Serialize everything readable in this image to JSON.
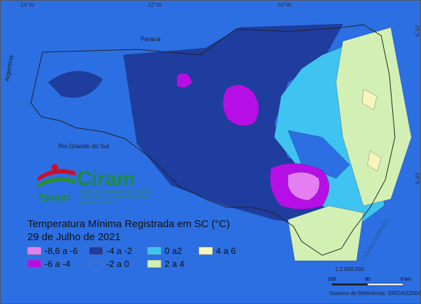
{
  "map": {
    "title": "Temperatura Mínima Registrada em SC (°C)",
    "date": "29 de Julho de 2021",
    "coordinates": {
      "lon": [
        "54°W",
        "52°W",
        "50°W"
      ],
      "lat": [
        "26°S",
        "28°S"
      ]
    },
    "places": [
      "Paraná",
      "Argentina",
      "Rio Grande do Sul",
      "Oceano Atlântico"
    ],
    "logo": {
      "name": "Ciram",
      "org": "Epagri",
      "subtitle": [
        "Centro de Informações de Recursos",
        "Ambientais e de Hidrometeorologia",
        "de Santa Catarina"
      ]
    },
    "legend": [
      {
        "label": "-8,6 a -6",
        "color": "#e57ef0"
      },
      {
        "label": "-6 a -4",
        "color": "#b60fe6"
      },
      {
        "label": "-4 a -2",
        "color": "#1f3d9e"
      },
      {
        "label": "-2 a 0",
        "color": "#2c6fe3"
      },
      {
        "label": "0 a2",
        "color": "#3fc3f0"
      },
      {
        "label": "2 a 4",
        "color": "#d2f0b4"
      },
      {
        "label": "4 a 6",
        "color": "#f7f5b8"
      }
    ],
    "scale": {
      "ratio": "1:2.000.000",
      "ticks": [
        "100",
        "50",
        "0 km"
      ]
    },
    "reference": "Sistema de Referência: SIRGAS2000"
  }
}
